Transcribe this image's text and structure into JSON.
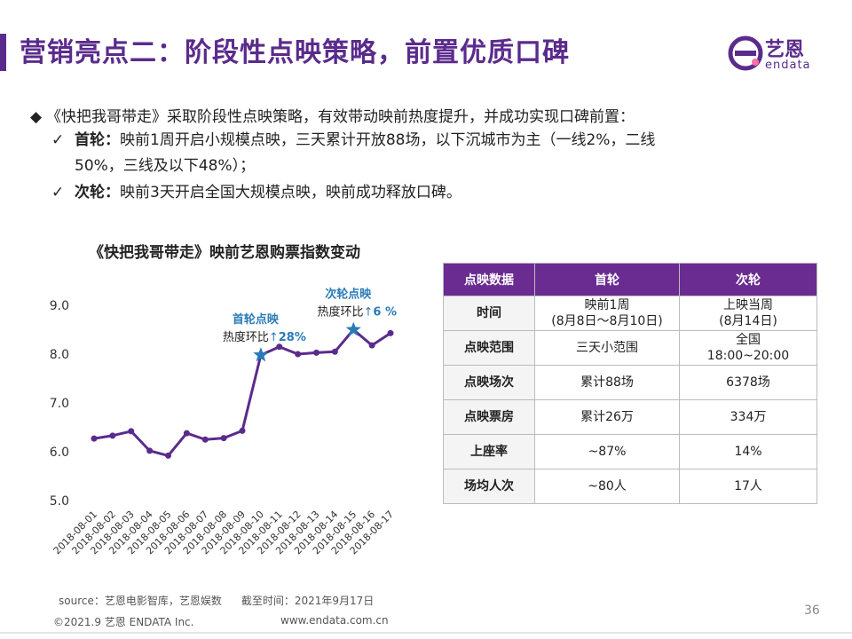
{
  "header": {
    "title": "营销亮点二：阶段性点映策略，前置优质口碑",
    "logo_cn": "艺恩",
    "logo_en": "endata"
  },
  "intro": {
    "main": "《快把我哥带走》采取阶段性点映策略，有效带动映前热度提升，并成功实现口碑前置：",
    "first_label": "首轮：",
    "first_text_1": "映前1周开启小规模点映，三天累计开放88场，以下沉城市为主（一线2%，二线",
    "first_text_2": "50%，三线及以下48%）；",
    "second_label": "次轮：",
    "second_text": "映前3天开启全国大规模点映，映前成功释放口碑。"
  },
  "chart_data": {
    "type": "line",
    "title": "《快把我哥带走》映前艺恩购票指数变动",
    "categories": [
      "2018-08-01",
      "2018-08-02",
      "2018-08-03",
      "2018-08-04",
      "2018-08-05",
      "2018-08-06",
      "2018-08-07",
      "2018-08-08",
      "2018-08-09",
      "2018-08-10",
      "2018-08-11",
      "2018-08-12",
      "2018-08-13",
      "2018-08-14",
      "2018-08-15",
      "2018-08-16",
      "2018-08-17"
    ],
    "values": [
      6.27,
      6.33,
      6.42,
      6.02,
      5.92,
      6.38,
      6.25,
      6.28,
      6.43,
      7.98,
      8.15,
      8.0,
      8.03,
      8.05,
      8.5,
      8.18,
      8.43
    ],
    "ylim": [
      5.0,
      9.0
    ],
    "yticks": [
      "5.0",
      "6.0",
      "7.0",
      "8.0",
      "9.0"
    ],
    "color": "#5b2b8c",
    "marker_color": "#2a7ab8",
    "annotations": [
      {
        "index": 9,
        "label": "首轮点映",
        "sub": "热度环比",
        "value": "28%"
      },
      {
        "index": 14,
        "label": "次轮点映",
        "sub": "热度环比",
        "value": "6 %"
      }
    ]
  },
  "table": {
    "headers": [
      "点映数据",
      "首轮",
      "次轮"
    ],
    "rows": [
      {
        "label": "时间",
        "first": [
          "映前1周",
          "(8月8日～8月10日)"
        ],
        "second": [
          "上映当周",
          "(8月14日)"
        ]
      },
      {
        "label": "点映范围",
        "first": [
          "三天小范围"
        ],
        "second": [
          "全国",
          "18:00~20:00"
        ]
      },
      {
        "label": "点映场次",
        "first": [
          "累计88场"
        ],
        "second": [
          "6378场"
        ]
      },
      {
        "label": "点映票房",
        "first": [
          "累计26万"
        ],
        "second": [
          "334万"
        ]
      },
      {
        "label": "上座率",
        "first": [
          "~87%"
        ],
        "second": [
          "14%"
        ]
      },
      {
        "label": "场均人次",
        "first": [
          "~80人"
        ],
        "second": [
          "17人"
        ]
      }
    ]
  },
  "footer": {
    "source": "source：艺恩电影智库，艺恩娱数",
    "cutoff": "截至时间：2021年9月17日",
    "copyright": "©2021.9 艺恩 ENDATA Inc.",
    "website": "www.endata.com.cn",
    "page": "36"
  }
}
